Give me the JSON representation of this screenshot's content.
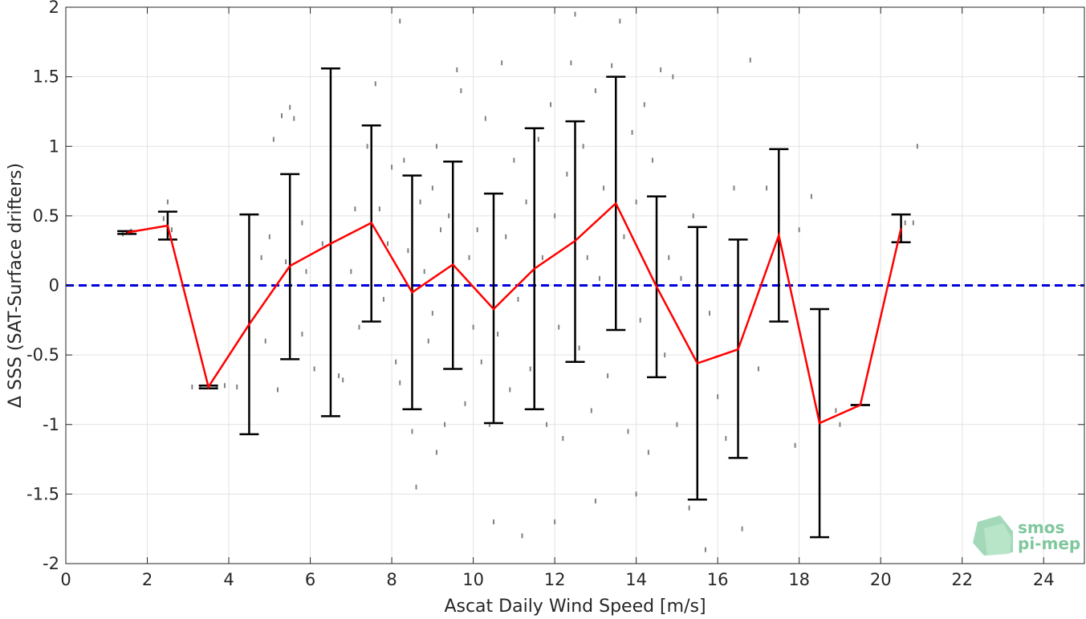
{
  "chart_data": {
    "type": "scatter",
    "xlabel": "Ascat Daily Wind Speed [m/s]",
    "ylabel": "Δ SSS (SAT-Surface drifters)",
    "xlim": [
      0,
      25
    ],
    "ylim": [
      -2,
      2
    ],
    "x_ticks": [
      0,
      2,
      4,
      6,
      8,
      10,
      12,
      14,
      16,
      18,
      20,
      22,
      24
    ],
    "y_ticks": [
      -2,
      -1.5,
      -1,
      -0.5,
      0,
      0.5,
      1,
      1.5,
      2
    ],
    "x_tick_labels": [
      "0",
      "2",
      "4",
      "6",
      "8",
      "10",
      "12",
      "14",
      "16",
      "18",
      "20",
      "22",
      "24"
    ],
    "y_tick_labels": [
      "-2",
      "-1.5",
      "-1",
      "-0.5",
      "0",
      "0.5",
      "1",
      "1.5",
      "2"
    ],
    "grid": true,
    "zero_line": {
      "y": 0,
      "color": "#0000dd",
      "style": "dashed"
    },
    "scatter_color": "#808080",
    "mean_line_color": "#ff0000",
    "errorbar_color": "#000000",
    "bins": [
      {
        "x": 1.5,
        "mean": 0.38,
        "upper": 0.39,
        "lower": 0.37
      },
      {
        "x": 2.5,
        "mean": 0.43,
        "upper": 0.53,
        "lower": 0.33
      },
      {
        "x": 3.5,
        "mean": -0.73,
        "upper": -0.72,
        "lower": -0.74
      },
      {
        "x": 4.5,
        "mean": -0.28,
        "upper": 0.51,
        "lower": -1.07
      },
      {
        "x": 5.5,
        "mean": 0.14,
        "upper": 0.8,
        "lower": -0.53
      },
      {
        "x": 6.5,
        "mean": 0.3,
        "upper": 1.56,
        "lower": -0.94
      },
      {
        "x": 7.5,
        "mean": 0.45,
        "upper": 1.15,
        "lower": -0.26
      },
      {
        "x": 8.5,
        "mean": -0.05,
        "upper": 0.79,
        "lower": -0.89
      },
      {
        "x": 9.5,
        "mean": 0.15,
        "upper": 0.89,
        "lower": -0.6
      },
      {
        "x": 10.5,
        "mean": -0.17,
        "upper": 0.66,
        "lower": -0.99
      },
      {
        "x": 11.5,
        "mean": 0.12,
        "upper": 1.13,
        "lower": -0.89
      },
      {
        "x": 12.5,
        "mean": 0.32,
        "upper": 1.18,
        "lower": -0.55
      },
      {
        "x": 13.5,
        "mean": 0.59,
        "upper": 1.5,
        "lower": -0.32
      },
      {
        "x": 14.5,
        "mean": -0.01,
        "upper": 0.64,
        "lower": -0.66
      },
      {
        "x": 15.5,
        "mean": -0.56,
        "upper": 0.42,
        "lower": -1.54
      },
      {
        "x": 16.5,
        "mean": -0.46,
        "upper": 0.33,
        "lower": -1.24
      },
      {
        "x": 17.5,
        "mean": 0.36,
        "upper": 0.98,
        "lower": -0.26
      },
      {
        "x": 18.5,
        "mean": -0.99,
        "upper": -0.17,
        "lower": -1.81
      },
      {
        "x": 19.5,
        "mean": -0.86,
        "upper": -0.86,
        "lower": -0.86
      },
      {
        "x": 20.5,
        "mean": 0.41,
        "upper": 0.51,
        "lower": 0.31
      }
    ],
    "scatter_points": [
      [
        1.4,
        0.37
      ],
      [
        1.6,
        0.39
      ],
      [
        2.4,
        0.48
      ],
      [
        2.5,
        0.6
      ],
      [
        2.6,
        0.4
      ],
      [
        2.5,
        0.34
      ],
      [
        3.1,
        -0.73
      ],
      [
        3.3,
        -0.73
      ],
      [
        3.7,
        -0.73
      ],
      [
        3.9,
        -0.72
      ],
      [
        4.2,
        -0.73
      ],
      [
        4.8,
        0.2
      ],
      [
        4.9,
        -0.4
      ],
      [
        5.0,
        0.35
      ],
      [
        5.1,
        1.05
      ],
      [
        5.2,
        -0.75
      ],
      [
        5.3,
        1.22
      ],
      [
        5.5,
        1.28
      ],
      [
        5.6,
        1.2
      ],
      [
        5.8,
        0.45
      ],
      [
        5.8,
        -0.35
      ],
      [
        5.4,
        0.17
      ],
      [
        5.9,
        0.1
      ],
      [
        6.1,
        -0.6
      ],
      [
        6.3,
        0.3
      ],
      [
        6.5,
        0.6
      ],
      [
        6.7,
        -0.65
      ],
      [
        6.8,
        -0.68
      ],
      [
        7.0,
        0.1
      ],
      [
        7.1,
        0.55
      ],
      [
        7.2,
        -0.3
      ],
      [
        7.4,
        1.0
      ],
      [
        7.6,
        1.45
      ],
      [
        7.7,
        0.55
      ],
      [
        7.8,
        -0.1
      ],
      [
        7.9,
        0.3
      ],
      [
        8.0,
        0.85
      ],
      [
        8.1,
        -0.55
      ],
      [
        8.2,
        -0.7
      ],
      [
        8.3,
        0.9
      ],
      [
        8.4,
        0.25
      ],
      [
        8.5,
        -1.05
      ],
      [
        8.6,
        -1.45
      ],
      [
        8.7,
        0.6
      ],
      [
        8.8,
        0.1
      ],
      [
        8.9,
        -0.4
      ],
      [
        9.0,
        0.7
      ],
      [
        9.0,
        -0.2
      ],
      [
        9.1,
        1.0
      ],
      [
        9.2,
        0.4
      ],
      [
        9.3,
        -1.0
      ],
      [
        9.4,
        0.5
      ],
      [
        9.6,
        1.55
      ],
      [
        9.7,
        1.4
      ],
      [
        9.8,
        -0.85
      ],
      [
        9.9,
        0.2
      ],
      [
        10.0,
        -0.3
      ],
      [
        10.1,
        0.4
      ],
      [
        10.2,
        -0.55
      ],
      [
        10.3,
        1.2
      ],
      [
        10.4,
        -1.0
      ],
      [
        10.6,
        -0.35
      ],
      [
        10.7,
        1.6
      ],
      [
        10.8,
        0.35
      ],
      [
        10.9,
        -0.75
      ],
      [
        11.0,
        0.9
      ],
      [
        11.1,
        -0.1
      ],
      [
        11.2,
        -1.8
      ],
      [
        11.3,
        0.6
      ],
      [
        11.4,
        -0.6
      ],
      [
        11.6,
        1.05
      ],
      [
        11.7,
        0.2
      ],
      [
        11.8,
        -1.0
      ],
      [
        11.9,
        1.3
      ],
      [
        12.0,
        0.5
      ],
      [
        12.1,
        -0.3
      ],
      [
        12.2,
        -1.1
      ],
      [
        12.3,
        0.8
      ],
      [
        12.4,
        1.6
      ],
      [
        12.6,
        -0.45
      ],
      [
        12.7,
        1.0
      ],
      [
        12.8,
        0.2
      ],
      [
        12.9,
        -0.9
      ],
      [
        13.0,
        1.4
      ],
      [
        13.1,
        0.05
      ],
      [
        13.2,
        0.7
      ],
      [
        13.3,
        -0.65
      ],
      [
        13.4,
        1.58
      ],
      [
        13.6,
        1.9
      ],
      [
        13.7,
        0.35
      ],
      [
        13.8,
        -1.05
      ],
      [
        13.9,
        1.1
      ],
      [
        14.0,
        0.6
      ],
      [
        14.1,
        -0.25
      ],
      [
        14.2,
        1.3
      ],
      [
        14.3,
        -1.2
      ],
      [
        14.4,
        0.9
      ],
      [
        14.6,
        1.55
      ],
      [
        14.7,
        -0.5
      ],
      [
        14.8,
        0.2
      ],
      [
        14.9,
        1.5
      ],
      [
        15.0,
        -1.0
      ],
      [
        15.1,
        0.05
      ],
      [
        15.3,
        -1.6
      ],
      [
        15.4,
        0.5
      ],
      [
        15.7,
        -1.9
      ],
      [
        15.8,
        -0.2
      ],
      [
        16.0,
        -0.8
      ],
      [
        16.2,
        -1.1
      ],
      [
        16.4,
        0.7
      ],
      [
        16.6,
        -1.75
      ],
      [
        16.8,
        1.62
      ],
      [
        17.0,
        -0.6
      ],
      [
        17.2,
        0.7
      ],
      [
        17.5,
        0.4
      ],
      [
        17.9,
        -1.15
      ],
      [
        18.0,
        0.4
      ],
      [
        18.3,
        0.64
      ],
      [
        18.9,
        -0.9
      ],
      [
        19.0,
        -1.0
      ],
      [
        20.6,
        0.45
      ],
      [
        20.8,
        0.45
      ],
      [
        20.9,
        1.0
      ],
      [
        9.1,
        -1.2
      ],
      [
        10.5,
        -1.7
      ],
      [
        12.0,
        -1.7
      ],
      [
        8.2,
        1.9
      ],
      [
        12.5,
        1.95
      ],
      [
        13.0,
        -1.55
      ],
      [
        14.0,
        -1.5
      ],
      [
        15.5,
        -1.4
      ]
    ]
  },
  "logo": {
    "line1": "smos",
    "line2": "pi-mep"
  }
}
